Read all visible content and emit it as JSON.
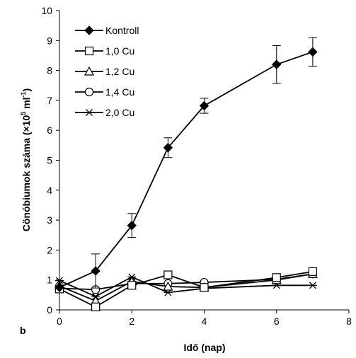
{
  "chart_data": {
    "type": "line",
    "panel_label": "b",
    "xlabel": "Idő (nap)",
    "ylabel_main": "Cönóbiumok száma (×10",
    "ylabel_sup1": "5",
    "ylabel_mid": " ml",
    "ylabel_sup2": "-1",
    "ylabel_end": ")",
    "xlim": [
      0,
      8
    ],
    "ylim": [
      0,
      10
    ],
    "xticks": [
      0,
      2,
      4,
      6,
      8
    ],
    "yticks": [
      0,
      1,
      2,
      3,
      4,
      5,
      6,
      7,
      8,
      9,
      10
    ],
    "grid": false,
    "legend_position": "top-left",
    "series": [
      {
        "name": "Kontroll",
        "marker": "diamond",
        "x": [
          0,
          1,
          2,
          3,
          4,
          6,
          7
        ],
        "y": [
          0.75,
          1.3,
          2.82,
          5.42,
          6.82,
          8.2,
          8.62
        ],
        "err": [
          0,
          0.57,
          0.4,
          0.33,
          0.25,
          0.63,
          0.48
        ]
      },
      {
        "name": "1,0 Cu",
        "marker": "square",
        "x": [
          0,
          1,
          2,
          3,
          4,
          6,
          7
        ],
        "y": [
          0.7,
          0.1,
          0.82,
          1.17,
          0.75,
          1.08,
          1.28
        ],
        "err": [
          0,
          0,
          0,
          0,
          0,
          0,
          0
        ]
      },
      {
        "name": "1,2 Cu",
        "marker": "triangle",
        "x": [
          0,
          1,
          2,
          3,
          4,
          6,
          7
        ],
        "y": [
          0.8,
          0.3,
          0.95,
          0.78,
          0.75,
          1.0,
          1.2
        ],
        "err": [
          0,
          0,
          0,
          0,
          0,
          0,
          0
        ]
      },
      {
        "name": "1,4 Cu",
        "marker": "circle",
        "x": [
          0,
          1,
          2,
          3,
          4,
          6,
          7
        ],
        "y": [
          0.72,
          0.68,
          0.88,
          0.88,
          0.92,
          1.02,
          1.2
        ],
        "err": [
          0,
          0,
          0,
          0,
          0,
          0,
          0
        ]
      },
      {
        "name": "2,0 Cu",
        "marker": "asterisk",
        "x": [
          0,
          1,
          2,
          3,
          4,
          6,
          7
        ],
        "y": [
          0.98,
          0.45,
          1.1,
          0.58,
          0.72,
          0.82,
          0.82
        ],
        "err": [
          0,
          0,
          0,
          0,
          0,
          0,
          0
        ]
      }
    ]
  }
}
